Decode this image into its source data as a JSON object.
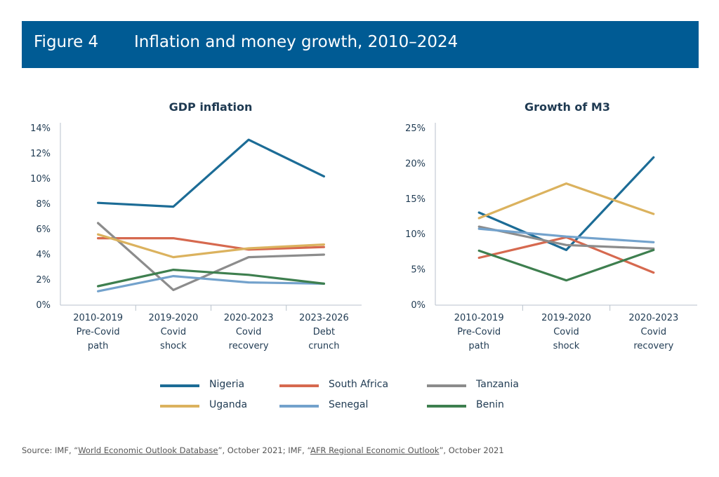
{
  "header": {
    "figure_number": "Figure 4",
    "title": "Inflation and money growth, 2010–2024"
  },
  "colors": {
    "header_bg": "#005b94",
    "Nigeria": "#1c6c96",
    "South Africa": "#d6694f",
    "Tanzania": "#8c8c8c",
    "Uganda": "#dbb25e",
    "Senegal": "#73a2cc",
    "Benin": "#3e7f4f"
  },
  "legend": [
    {
      "name": "Nigeria"
    },
    {
      "name": "South Africa"
    },
    {
      "name": "Tanzania"
    },
    {
      "name": "Uganda"
    },
    {
      "name": "Senegal"
    },
    {
      "name": "Benin"
    }
  ],
  "chart_data": [
    {
      "type": "line",
      "title": "GDP inflation",
      "categories": [
        [
          "2010-2019",
          "Pre-Covid",
          "path"
        ],
        [
          "2019-2020",
          "Covid",
          "shock"
        ],
        [
          "2020-2023",
          "Covid",
          "recovery"
        ],
        [
          "2023-2026",
          "Debt",
          "crunch"
        ]
      ],
      "yticks": [
        "0%",
        "2%",
        "4%",
        "6%",
        "8%",
        "10%",
        "12%",
        "14%"
      ],
      "ylim": [
        0,
        14
      ],
      "series": [
        {
          "name": "Nigeria",
          "values": [
            8.1,
            7.8,
            13.1,
            10.2
          ]
        },
        {
          "name": "South Africa",
          "values": [
            5.3,
            5.3,
            4.4,
            4.6
          ]
        },
        {
          "name": "Tanzania",
          "values": [
            6.5,
            1.2,
            3.8,
            4.0
          ]
        },
        {
          "name": "Uganda",
          "values": [
            5.6,
            3.8,
            4.5,
            4.8
          ]
        },
        {
          "name": "Senegal",
          "values": [
            1.1,
            2.3,
            1.8,
            1.7
          ]
        },
        {
          "name": "Benin",
          "values": [
            1.5,
            2.8,
            2.4,
            1.7
          ]
        }
      ]
    },
    {
      "type": "line",
      "title": "Growth of M3",
      "categories": [
        [
          "2010-2019",
          "Pre-Covid",
          "path"
        ],
        [
          "2019-2020",
          "Covid",
          "shock"
        ],
        [
          "2020-2023",
          "Covid",
          "recovery"
        ]
      ],
      "yticks": [
        "0%",
        "5%",
        "10%",
        "15%",
        "20%",
        "25%"
      ],
      "ylim": [
        0,
        25
      ],
      "series": [
        {
          "name": "Nigeria",
          "values": [
            13.1,
            7.8,
            20.9
          ]
        },
        {
          "name": "South Africa",
          "values": [
            6.7,
            9.6,
            4.6
          ]
        },
        {
          "name": "Tanzania",
          "values": [
            11.1,
            8.5,
            8.0
          ]
        },
        {
          "name": "Uganda",
          "values": [
            12.3,
            17.2,
            12.9
          ]
        },
        {
          "name": "Senegal",
          "values": [
            10.8,
            9.7,
            8.9
          ]
        },
        {
          "name": "Benin",
          "values": [
            7.7,
            3.5,
            7.8
          ]
        }
      ]
    }
  ],
  "source": {
    "prefix": "Source: IMF, “",
    "link1": "World Economic Outlook Database",
    "middle": "”, October 2021; IMF, “",
    "link2": "AFR Regional Economic Outlook",
    "suffix": "”, October 2021"
  }
}
